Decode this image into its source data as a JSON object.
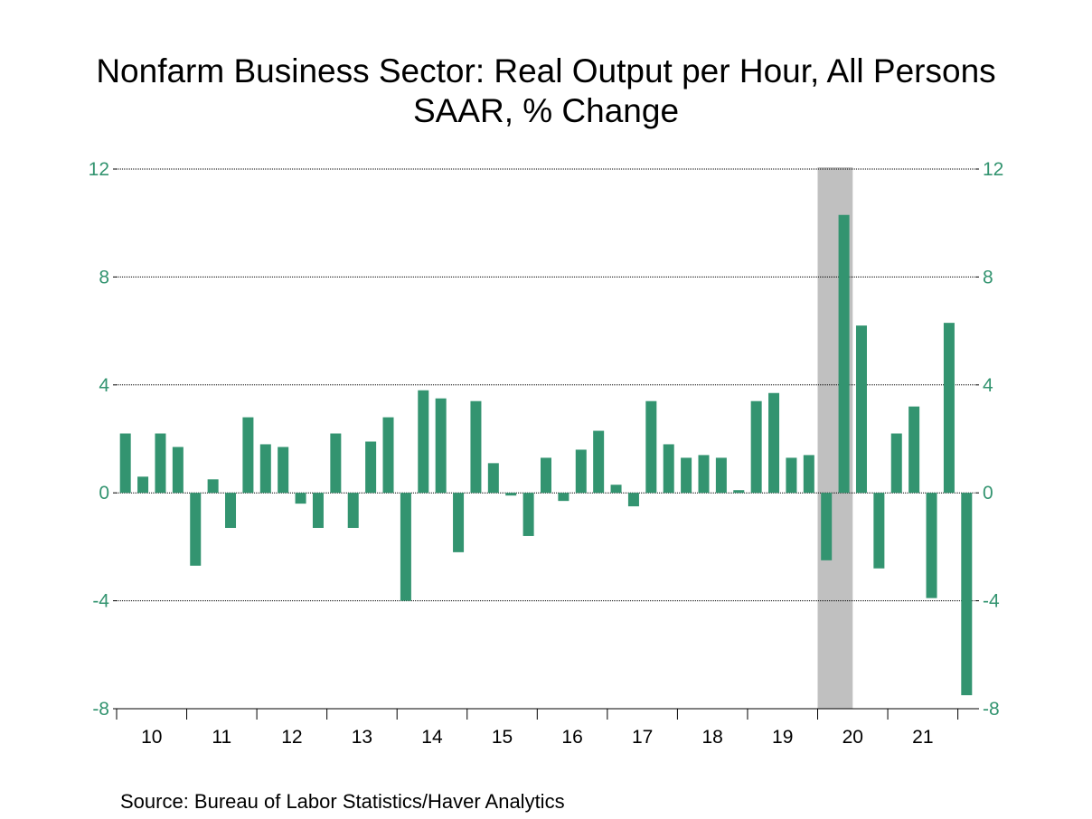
{
  "title_line1": "Nonfarm Business Sector: Real Output per Hour, All Persons",
  "title_line2": "SAAR, % Change",
  "source": "Source:  Bureau of Labor Statistics/Haver Analytics",
  "colors": {
    "bar": "#339470",
    "axis_text": "#339470",
    "recession_shade": "#c0c0c0",
    "gridline": "#000000"
  },
  "chart_data": {
    "type": "bar",
    "title": "Nonfarm Business Sector: Real Output per Hour, All Persons",
    "subtitle": "SAAR, % Change",
    "ylim": [
      -8,
      12
    ],
    "yticks": [
      "12",
      "8",
      "4",
      "0",
      "-4",
      "-8"
    ],
    "right_axis": true,
    "grid": "horizontal dotted",
    "frequency": "quarterly",
    "start_period": "2010Q1",
    "year_labels": [
      "10",
      "11",
      "12",
      "13",
      "14",
      "15",
      "16",
      "17",
      "18",
      "19",
      "20",
      "21"
    ],
    "recession_shading": {
      "start": "2020Q1",
      "end": "2020Q2"
    },
    "values": [
      2.2,
      0.6,
      2.2,
      1.7,
      -2.7,
      0.5,
      -1.3,
      2.8,
      1.8,
      1.7,
      -0.4,
      -1.3,
      2.2,
      -1.3,
      1.9,
      2.8,
      -4.0,
      3.8,
      3.5,
      -2.2,
      3.4,
      1.1,
      -0.1,
      -1.6,
      1.3,
      -0.3,
      1.6,
      2.3,
      0.3,
      -0.5,
      3.4,
      1.8,
      1.3,
      1.4,
      1.3,
      0.1,
      3.4,
      3.7,
      1.3,
      1.4,
      -2.5,
      10.3,
      6.2,
      -2.8,
      2.2,
      3.2,
      -3.9,
      6.3,
      -7.5
    ]
  }
}
